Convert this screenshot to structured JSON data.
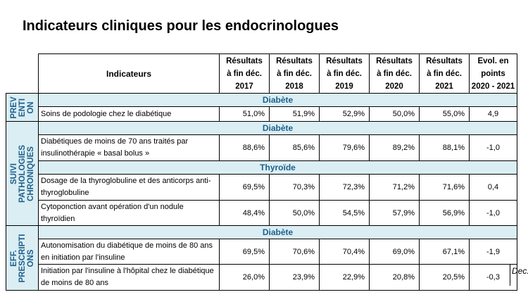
{
  "title": "Indicateurs cliniques pour les endocrinologues",
  "table": {
    "headers": {
      "indicators": "Indicateurs",
      "y2017": "Résultats\nà fin déc.\n2017",
      "y2018": "Résultats\nà fin déc.\n2018",
      "y2019": "Résultats\nà fin déc.\n2019",
      "y2020": "Résultats\nà fin déc.\n2020",
      "y2021": "Résultats\nà fin déc.\n2021",
      "evol": "Evol. en\npoints\n2020 - 2021"
    },
    "sections": {
      "prevention": "PREV\nENTI\nON",
      "suivi": "SUIVI PATHOLOGIES\nCHRONIQUES",
      "eff": "EFF.\nPRESCRIPTI\nONS"
    },
    "categories": {
      "prev_diabete": "Diabète",
      "suivi_diabete": "Diabète",
      "suivi_thyroide": "Thyroïde",
      "eff_diabete": "Diabète"
    },
    "rows": [
      {
        "label": "Soins de podologie chez le diabétique",
        "v2017": "51,0%",
        "v2018": "51,9%",
        "v2019": "52,9%",
        "v2020": "50,0%",
        "v2021": "55,0%",
        "evol": "4,9"
      },
      {
        "label": "Diabétiques de moins de 70 ans traités par insulinothérapie « basal bolus »",
        "v2017": "88,6%",
        "v2018": "85,6%",
        "v2019": "79,6%",
        "v2020": "89,2%",
        "v2021": "88,1%",
        "evol": "-1,0"
      },
      {
        "label": "Dosage de la thyroglobuline et des anticorps anti-thyroglobuline",
        "v2017": "69,5%",
        "v2018": "70,3%",
        "v2019": "72,3%",
        "v2020": "71,2%",
        "v2021": "71,6%",
        "evol": "0,4"
      },
      {
        "label": "Cytoponction avant opération d'un nodule thyroïdien",
        "v2017": "48,4%",
        "v2018": "50,0%",
        "v2019": "54,5%",
        "v2020": "57,9%",
        "v2021": "56,9%",
        "evol": "-1,0"
      },
      {
        "label": "Autonomisation du diabétique de moins de 80 ans en initiation par l'insuline",
        "v2017": "69,5%",
        "v2018": "70,6%",
        "v2019": "70,4%",
        "v2020": "69,0%",
        "v2021": "67,1%",
        "evol": "-1,9"
      },
      {
        "label": "Initiation par l'insuline à l'hôpital chez le diabétique de moins de 80 ans",
        "v2017": "26,0%",
        "v2018": "23,9%",
        "v2019": "22,9%",
        "v2020": "20,8%",
        "v2021": "20,5%",
        "evol": "-0,3"
      }
    ]
  },
  "side_note": "Dec."
}
